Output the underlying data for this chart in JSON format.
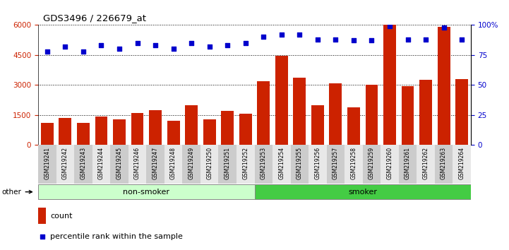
{
  "title": "GDS3496 / 226679_at",
  "categories": [
    "GSM219241",
    "GSM219242",
    "GSM219243",
    "GSM219244",
    "GSM219245",
    "GSM219246",
    "GSM219247",
    "GSM219248",
    "GSM219249",
    "GSM219250",
    "GSM219251",
    "GSM219252",
    "GSM219253",
    "GSM219254",
    "GSM219255",
    "GSM219256",
    "GSM219257",
    "GSM219258",
    "GSM219259",
    "GSM219260",
    "GSM219261",
    "GSM219262",
    "GSM219263",
    "GSM219264"
  ],
  "counts": [
    1100,
    1350,
    1100,
    1430,
    1300,
    1600,
    1750,
    1200,
    2000,
    1300,
    1700,
    1550,
    3200,
    4450,
    3350,
    2000,
    3100,
    1900,
    3000,
    6000,
    2950,
    3250,
    5900,
    3300
  ],
  "percentiles": [
    78,
    82,
    78,
    83,
    80,
    85,
    83,
    80,
    85,
    82,
    83,
    85,
    90,
    92,
    92,
    88,
    88,
    87,
    87,
    99,
    88,
    88,
    98,
    88
  ],
  "non_smoker_count": 12,
  "smoker_count": 12,
  "bar_color": "#cc2200",
  "dot_color": "#0000cc",
  "nonsmoker_color": "#ccffcc",
  "smoker_color": "#44cc44",
  "tick_bg_even": "#cccccc",
  "tick_bg_odd": "#e8e8e8",
  "ylim_left": [
    0,
    6000
  ],
  "ylim_right": [
    0,
    100
  ],
  "yticks_left": [
    0,
    1500,
    3000,
    4500,
    6000
  ],
  "yticks_right": [
    0,
    25,
    50,
    75,
    100
  ],
  "legend_count_label": "count",
  "legend_pct_label": "percentile rank within the sample",
  "other_label": "other"
}
